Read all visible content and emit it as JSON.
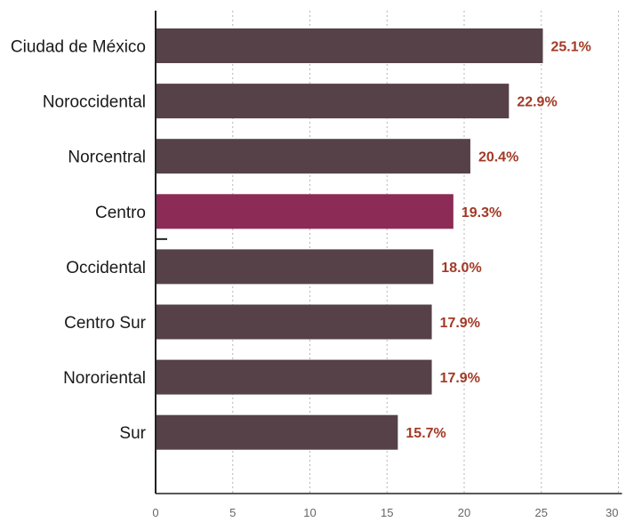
{
  "chart_data": {
    "type": "bar",
    "orientation": "horizontal",
    "categories": [
      "Ciudad de México",
      "Noroccidental",
      "Norcentral",
      "Centro",
      "Occidental",
      "Centro Sur",
      "Nororiental",
      "Sur"
    ],
    "values": [
      25.1,
      22.9,
      20.4,
      19.3,
      18.0,
      17.9,
      17.9,
      15.7
    ],
    "value_labels": [
      "25.1%",
      "22.9%",
      "20.4%",
      "19.3%",
      "18.0%",
      "17.9%",
      "17.9%",
      "15.7%"
    ],
    "highlight_category": "Centro",
    "xlim": [
      0,
      30
    ],
    "xticks": [
      0,
      5,
      10,
      15,
      20,
      25,
      30
    ],
    "xtick_labels": [
      "0",
      "5",
      "10",
      "15",
      "20",
      "25",
      "30"
    ],
    "grid": "vertical dotted",
    "title": "",
    "xlabel": "",
    "ylabel": "",
    "colors": {
      "bar": "#554147",
      "highlight": "#8c2b56",
      "value_label": "#a23a26",
      "grid": "#b5b5b5",
      "axis": "#222222"
    }
  }
}
